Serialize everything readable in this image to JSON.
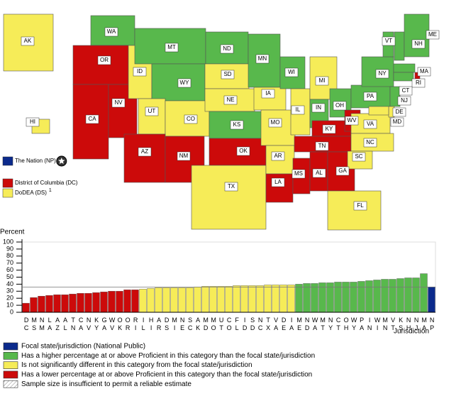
{
  "map": {
    "states": [
      {
        "label": "WA",
        "group": 1
      },
      {
        "label": "OR",
        "group": 3
      },
      {
        "label": "CA",
        "group": 3
      },
      {
        "label": "NV",
        "group": 3
      },
      {
        "label": "ID",
        "group": 2
      },
      {
        "label": "MT",
        "group": 1
      },
      {
        "label": "WY",
        "group": 1
      },
      {
        "label": "UT",
        "group": 2
      },
      {
        "label": "CO",
        "group": 2
      },
      {
        "label": "AZ",
        "group": 3
      },
      {
        "label": "NM",
        "group": 3
      },
      {
        "label": "ND",
        "group": 1
      },
      {
        "label": "SD",
        "group": 2
      },
      {
        "label": "NE",
        "group": 2
      },
      {
        "label": "KS",
        "group": 1
      },
      {
        "label": "OK",
        "group": 3
      },
      {
        "label": "TX",
        "group": 2
      },
      {
        "label": "MN",
        "group": 1
      },
      {
        "label": "IA",
        "group": 2
      },
      {
        "label": "MO",
        "group": 2
      },
      {
        "label": "AR",
        "group": 2
      },
      {
        "label": "LA",
        "group": 3
      },
      {
        "label": "WI",
        "group": 1
      },
      {
        "label": "IL",
        "group": 2
      },
      {
        "label": "MS",
        "group": 3
      },
      {
        "label": "MI",
        "group": 2
      },
      {
        "label": "IN",
        "group": 1
      },
      {
        "label": "KY",
        "group": 3
      },
      {
        "label": "TN",
        "group": 3
      },
      {
        "label": "AL",
        "group": 3
      },
      {
        "label": "GA",
        "group": 3
      },
      {
        "label": "FL",
        "group": 2
      },
      {
        "label": "OH",
        "group": 1
      },
      {
        "label": "WV",
        "group": 3
      },
      {
        "label": "VA",
        "group": 2
      },
      {
        "label": "NC",
        "group": 2
      },
      {
        "label": "SC",
        "group": 2
      },
      {
        "label": "PA",
        "group": 1
      },
      {
        "label": "NY",
        "group": 1
      },
      {
        "label": "VT",
        "group": 1
      },
      {
        "label": "NH",
        "group": 1
      },
      {
        "label": "ME",
        "group": 1
      },
      {
        "label": "MA",
        "group": 1
      },
      {
        "label": "RI",
        "group": 3
      },
      {
        "label": "CT",
        "group": 1
      },
      {
        "label": "NJ",
        "group": 1
      },
      {
        "label": "DE",
        "group": 2
      },
      {
        "label": "MD",
        "group": 2
      },
      {
        "label": "AK",
        "group": 2
      },
      {
        "label": "HI",
        "group": 2
      }
    ],
    "legend": [
      {
        "label": "The Nation (NP)",
        "group": 0
      },
      {
        "label": "District of Columbia (DC)",
        "group": 3
      },
      {
        "label": "DoDEA (DS)",
        "group": 2,
        "note": "1"
      }
    ]
  },
  "chart_data": {
    "type": "bar",
    "y_label": "Percent",
    "x_label": "Jurisdiction",
    "categories": [
      "DC",
      "MS",
      "NM",
      "LA",
      "AZ",
      "AL",
      "TN",
      "CA",
      "NV",
      "KY",
      "GA",
      "WV",
      "OK",
      "OR",
      "RI",
      "IL",
      "HI",
      "AR",
      "DS",
      "MI",
      "NE",
      "SC",
      "AK",
      "MD",
      "MO",
      "UT",
      "CO",
      "FL",
      "ID",
      "SD",
      "NC",
      "TX",
      "VA",
      "DE",
      "IA",
      "ME",
      "ND",
      "WA",
      "MT",
      "NY",
      "CT",
      "OH",
      "WY",
      "PA",
      "IN",
      "WI",
      "MN",
      "VT",
      "KS",
      "NH",
      "NJ",
      "MA",
      "NP"
    ],
    "values": [
      13,
      21,
      23,
      24,
      25,
      25,
      26,
      27,
      27,
      28,
      29,
      30,
      30,
      32,
      32,
      33,
      34,
      35,
      35,
      35,
      35,
      35,
      36,
      37,
      37,
      37,
      37,
      38,
      38,
      38,
      38,
      39,
      39,
      39,
      39,
      40,
      41,
      41,
      42,
      42,
      43,
      43,
      43,
      44,
      45,
      46,
      47,
      47,
      48,
      49,
      49,
      55,
      36
    ],
    "groups": [
      3,
      3,
      3,
      3,
      3,
      3,
      3,
      3,
      3,
      3,
      3,
      3,
      3,
      3,
      3,
      2,
      2,
      2,
      2,
      2,
      2,
      2,
      2,
      2,
      2,
      2,
      2,
      2,
      2,
      2,
      2,
      2,
      2,
      2,
      2,
      1,
      1,
      1,
      1,
      1,
      1,
      1,
      1,
      1,
      1,
      1,
      1,
      1,
      1,
      1,
      1,
      1,
      0
    ],
    "ylim": [
      0,
      100
    ],
    "yticks": [
      0,
      10,
      20,
      30,
      40,
      50,
      60,
      70,
      80,
      90,
      100
    ],
    "legend": [
      {
        "label": "Focal state/jurisdiction (National Public)",
        "color": "#0b2a8c"
      },
      {
        "label": "Has a higher percentage at or above Proficient in this category than the focal state/jurisdiction",
        "color": "#58b84c"
      },
      {
        "label": "Is not significantly different in this category from the focal state/jurisdiction",
        "color": "#f6ec58"
      },
      {
        "label": "Has a lower percentage at or above Proficient in this category than the focal state/jurisdiction",
        "color": "#cc0a0a"
      },
      {
        "label": "Sample size is insufficient to permit a reliable estimate",
        "color": "#ffffff",
        "hatch": true
      }
    ]
  }
}
